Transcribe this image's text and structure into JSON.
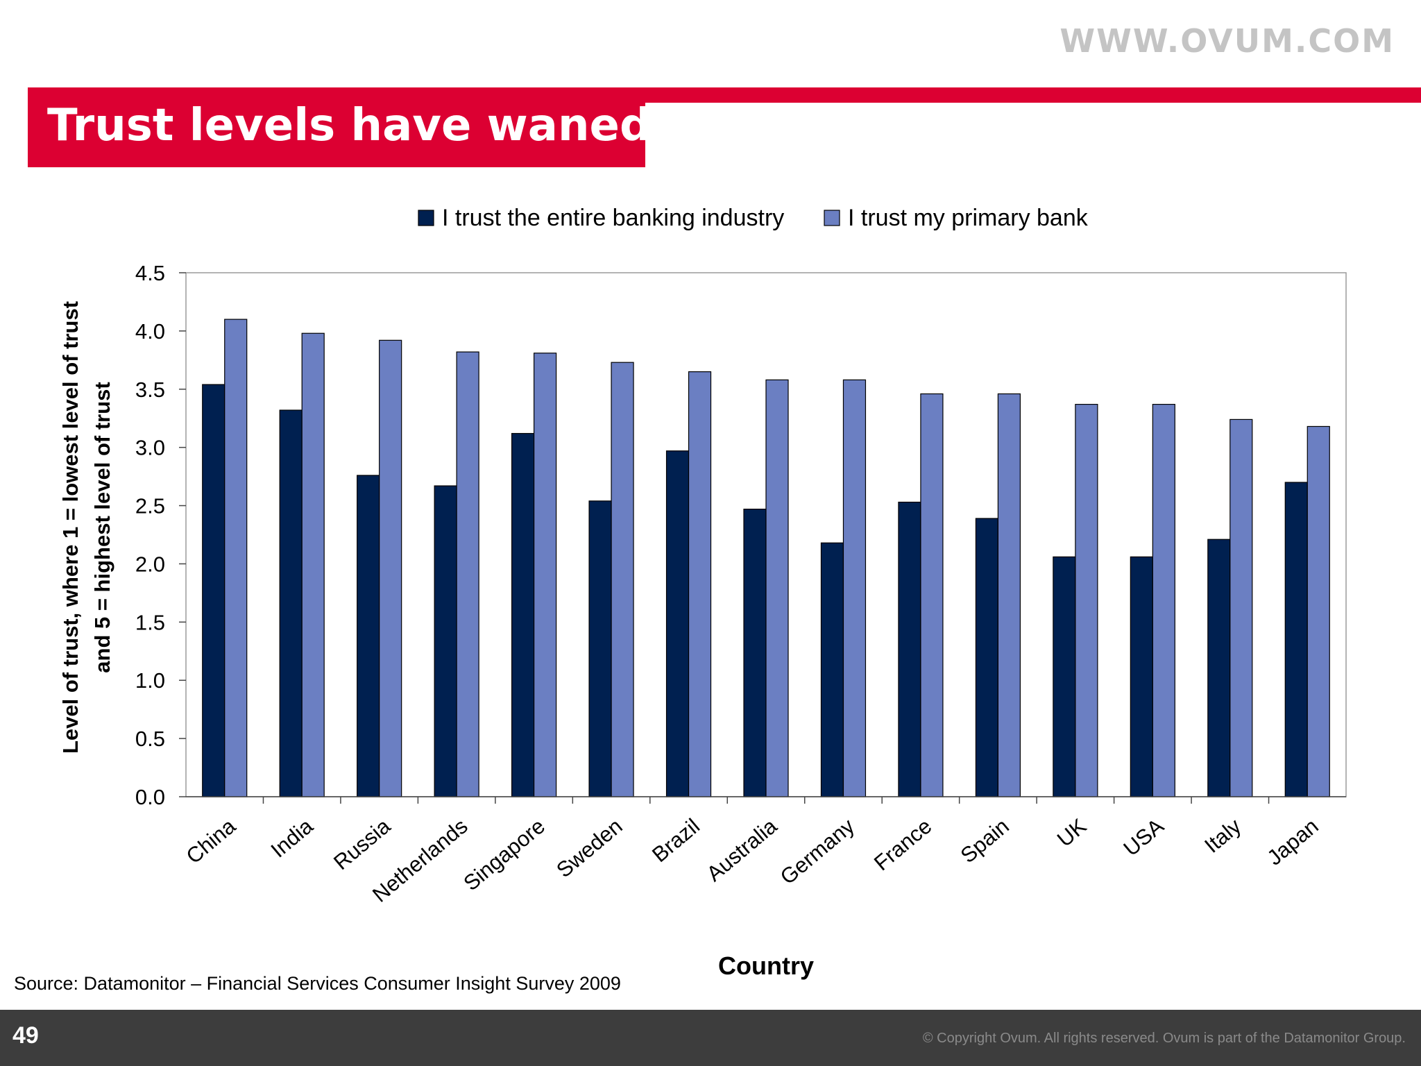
{
  "header": {
    "site_url": "WWW.OVUM.COM",
    "title": "Trust levels have waned"
  },
  "chart_data": {
    "type": "bar",
    "categories": [
      "China",
      "India",
      "Russia",
      "Netherlands",
      "Singapore",
      "Sweden",
      "Brazil",
      "Australia",
      "Germany",
      "France",
      "Spain",
      "UK",
      "USA",
      "Italy",
      "Japan"
    ],
    "series": [
      {
        "name": "I trust the entire banking industry",
        "color": "#002050",
        "values": [
          3.54,
          3.32,
          2.76,
          2.67,
          3.12,
          2.54,
          2.97,
          2.47,
          2.18,
          2.53,
          2.39,
          2.06,
          2.06,
          2.21,
          2.7
        ]
      },
      {
        "name": "I trust my primary bank",
        "color": "#6b7fc2",
        "values": [
          4.1,
          3.98,
          3.92,
          3.82,
          3.81,
          3.73,
          3.65,
          3.58,
          3.58,
          3.46,
          3.46,
          3.37,
          3.37,
          3.24,
          3.18
        ]
      }
    ],
    "ylim": [
      0,
      4.5
    ],
    "yticks": [
      "0.0",
      "0.5",
      "1.0",
      "1.5",
      "2.0",
      "2.5",
      "3.0",
      "3.5",
      "4.0",
      "4.5"
    ],
    "xlabel": "Country",
    "ylabel_line1": "Level of trust, where 1 = lowest level of trust",
    "ylabel_line2": "and 5 = highest level of trust",
    "legend_position": "top-center",
    "grid": false
  },
  "source": "Source: Datamonitor – Financial Services Consumer Insight Survey 2009",
  "footer": {
    "page_number": "49",
    "copyright": "© Copyright Ovum. All rights reserved. Ovum is part of the Datamonitor Group."
  }
}
